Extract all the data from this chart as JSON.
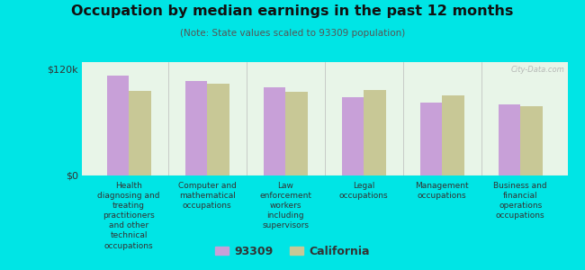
{
  "title": "Occupation by median earnings in the past 12 months",
  "subtitle": "(Note: State values scaled to 93309 population)",
  "categories": [
    "Health\ndiagnosing and\ntreating\npractitioners\nand other\ntechnical\noccupations",
    "Computer and\nmathematical\noccupations",
    "Law\nenforcement\nworkers\nincluding\nsupervisors",
    "Legal\noccupations",
    "Management\noccupations",
    "Business and\nfinancial\noperations\noccupations"
  ],
  "values_93309": [
    113000,
    107000,
    100000,
    88000,
    82000,
    80000
  ],
  "values_california": [
    95000,
    104000,
    94000,
    97000,
    90000,
    78000
  ],
  "color_93309": "#c8a0d8",
  "color_california": "#c8c896",
  "background_color": "#00e5e5",
  "plot_bg_color": "#e8f5e8",
  "ylabel_0": "$0",
  "ylabel_120k": "$120k",
  "ylim": [
    0,
    128000
  ],
  "ytick_0": 0,
  "ytick_120k": 120000,
  "legend_93309": "93309",
  "legend_california": "California",
  "watermark": "City-Data.com"
}
